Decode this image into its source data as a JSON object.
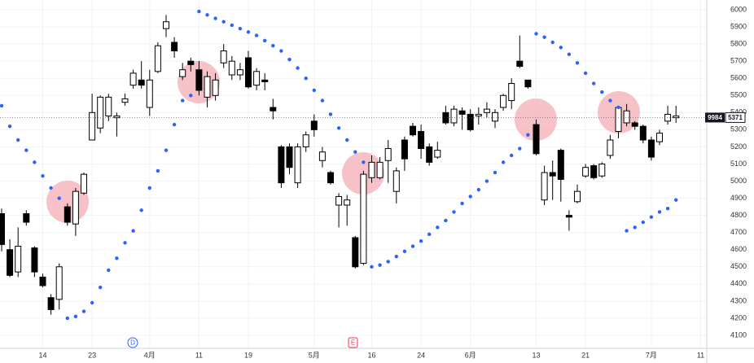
{
  "chart_data": {
    "type": "candlestick",
    "categories": [
      null,
      null,
      null,
      null,
      null,
      "14",
      null,
      null,
      null,
      null,
      null,
      "23",
      null,
      null,
      null,
      null,
      null,
      null,
      "4月",
      null,
      null,
      null,
      null,
      null,
      "11",
      null,
      null,
      null,
      null,
      null,
      "19",
      null,
      null,
      null,
      null,
      null,
      null,
      null,
      "5月",
      null,
      null,
      null,
      null,
      null,
      null,
      "16",
      null,
      null,
      null,
      null,
      null,
      "24",
      null,
      null,
      null,
      null,
      null,
      "6月",
      null,
      null,
      null,
      null,
      null,
      null,
      null,
      "13",
      null,
      null,
      null,
      null,
      null,
      "21",
      null,
      null,
      null,
      null,
      null,
      null,
      null,
      "7月",
      null,
      null,
      null,
      null,
      null,
      "11",
      null,
      null
    ],
    "open": [
      4810,
      4600,
      4470,
      4810,
      4610,
      4440,
      4320,
      4310,
      4850,
      4750,
      4930,
      5240,
      5310,
      5380,
      5370,
      5460,
      5560,
      5590,
      5430,
      5640,
      5890,
      5810,
      5610,
      5700,
      5650,
      5490,
      5500,
      5690,
      5620,
      5620,
      5720,
      5560,
      5590,
      5430,
      5200,
      5200,
      4990,
      5200,
      5350,
      5120,
      5050,
      4860,
      4860,
      4670,
      4520,
      5020,
      5020,
      5120,
      4940,
      5240,
      5320,
      5290,
      5200,
      5140,
      5400,
      5340,
      5410,
      5390,
      5380,
      5400,
      5350,
      5430,
      5470,
      5700,
      5590,
      5330,
      4890,
      5050,
      5180,
      4800,
      4880,
      5030,
      5090,
      5030,
      5150,
      5290,
      5340,
      5340,
      5320,
      5240,
      5230,
      5350,
      5370,
      null,
      null,
      null,
      null,
      null
    ],
    "high": [
      4840,
      4660,
      4730,
      4830,
      4620,
      4460,
      4340,
      4520,
      4870,
      4960,
      5050,
      5510,
      5500,
      5510,
      5400,
      5510,
      5650,
      5700,
      5650,
      5810,
      5970,
      5840,
      5690,
      5720,
      5700,
      5640,
      5630,
      5800,
      5730,
      5690,
      5760,
      5660,
      5630,
      5480,
      5210,
      5220,
      5220,
      5290,
      5390,
      5200,
      5060,
      4930,
      4920,
      4680,
      5060,
      5150,
      5140,
      5240,
      5080,
      5260,
      5340,
      5330,
      5220,
      5230,
      5440,
      5440,
      5430,
      5420,
      5430,
      5460,
      5420,
      5510,
      5600,
      5850,
      5590,
      5360,
      5090,
      5120,
      5190,
      4830,
      4980,
      5100,
      5100,
      5110,
      5270,
      5440,
      5450,
      5350,
      5330,
      5260,
      5300,
      5440,
      5440,
      null,
      null,
      null,
      null,
      null
    ],
    "low": [
      4590,
      4440,
      4440,
      4740,
      4440,
      4380,
      4220,
      4250,
      4740,
      4680,
      4920,
      5240,
      5280,
      5350,
      5260,
      5440,
      5540,
      5540,
      5380,
      5630,
      5840,
      5720,
      5590,
      5640,
      5500,
      5430,
      5470,
      5660,
      5590,
      5590,
      5540,
      5530,
      5530,
      5360,
      4960,
      5040,
      4960,
      5170,
      5260,
      5080,
      4980,
      4730,
      4740,
      4490,
      4510,
      4990,
      5010,
      4990,
      4870,
      5060,
      5260,
      5130,
      5090,
      5130,
      5330,
      5320,
      5300,
      5290,
      5330,
      5370,
      5310,
      5410,
      5420,
      5660,
      5540,
      5150,
      4860,
      4890,
      4880,
      4710,
      4870,
      5020,
      5010,
      5020,
      5130,
      5250,
      5320,
      5300,
      5220,
      5120,
      5210,
      5330,
      5340,
      null,
      null,
      null,
      null,
      null
    ],
    "close": [
      4630,
      4450,
      4620,
      4760,
      4470,
      4390,
      4250,
      4500,
      4760,
      4940,
      5040,
      5400,
      5490,
      5490,
      5380,
      5480,
      5630,
      5560,
      5590,
      5790,
      5930,
      5760,
      5650,
      5680,
      5530,
      5610,
      5590,
      5760,
      5700,
      5650,
      5550,
      5640,
      5580,
      5410,
      4990,
      5080,
      5200,
      5270,
      5300,
      5170,
      4990,
      4910,
      4890,
      4500,
      5040,
      5110,
      5110,
      5190,
      5060,
      5130,
      5270,
      5190,
      5110,
      5180,
      5340,
      5420,
      5390,
      5300,
      5390,
      5420,
      5400,
      5500,
      5570,
      5670,
      5550,
      5160,
      5050,
      5030,
      5010,
      4790,
      4940,
      5080,
      5020,
      5100,
      5240,
      5430,
      5410,
      5320,
      5240,
      5140,
      5280,
      5390,
      5380,
      null,
      null,
      null,
      null,
      null
    ],
    "up_color": "#ffffff",
    "down_color": "#000000",
    "wick_color": "#000000",
    "sar": {
      "color": "#2962ff",
      "values": [
        5440,
        5320,
        5240,
        5180,
        5110,
        5030,
        4960,
        4900,
        4200,
        4210,
        4240,
        4290,
        4380,
        4480,
        4550,
        4640,
        4710,
        4830,
        4960,
        5060,
        5180,
        5330,
        5470,
        5500,
        5990,
        5970,
        5950,
        5930,
        5910,
        5890,
        5870,
        5850,
        5820,
        5790,
        5760,
        5710,
        5660,
        5600,
        5530,
        5470,
        5390,
        5310,
        5240,
        5170,
        5110,
        4500,
        4510,
        4530,
        4560,
        4590,
        4620,
        4650,
        4690,
        4730,
        4770,
        4820,
        4870,
        4910,
        4950,
        5000,
        5050,
        5110,
        5150,
        5190,
        5270,
        5860,
        5840,
        5810,
        5780,
        5740,
        5690,
        5630,
        5570,
        5520,
        5470,
        5430,
        4710,
        4730,
        4760,
        4790,
        4820,
        4840,
        4890,
        null,
        null,
        null,
        null,
        null
      ]
    },
    "ylim": [
      4024,
      6057
    ],
    "yticks": [
      4100,
      4200,
      4300,
      4400,
      4500,
      4600,
      4700,
      4800,
      4900,
      5000,
      5100,
      5200,
      5300,
      5400,
      5500,
      5600,
      5700,
      5800,
      5900,
      6000
    ],
    "grid": true,
    "symbol_code": "9984",
    "last_price": 5371,
    "events": [
      "D",
      "E"
    ]
  }
}
